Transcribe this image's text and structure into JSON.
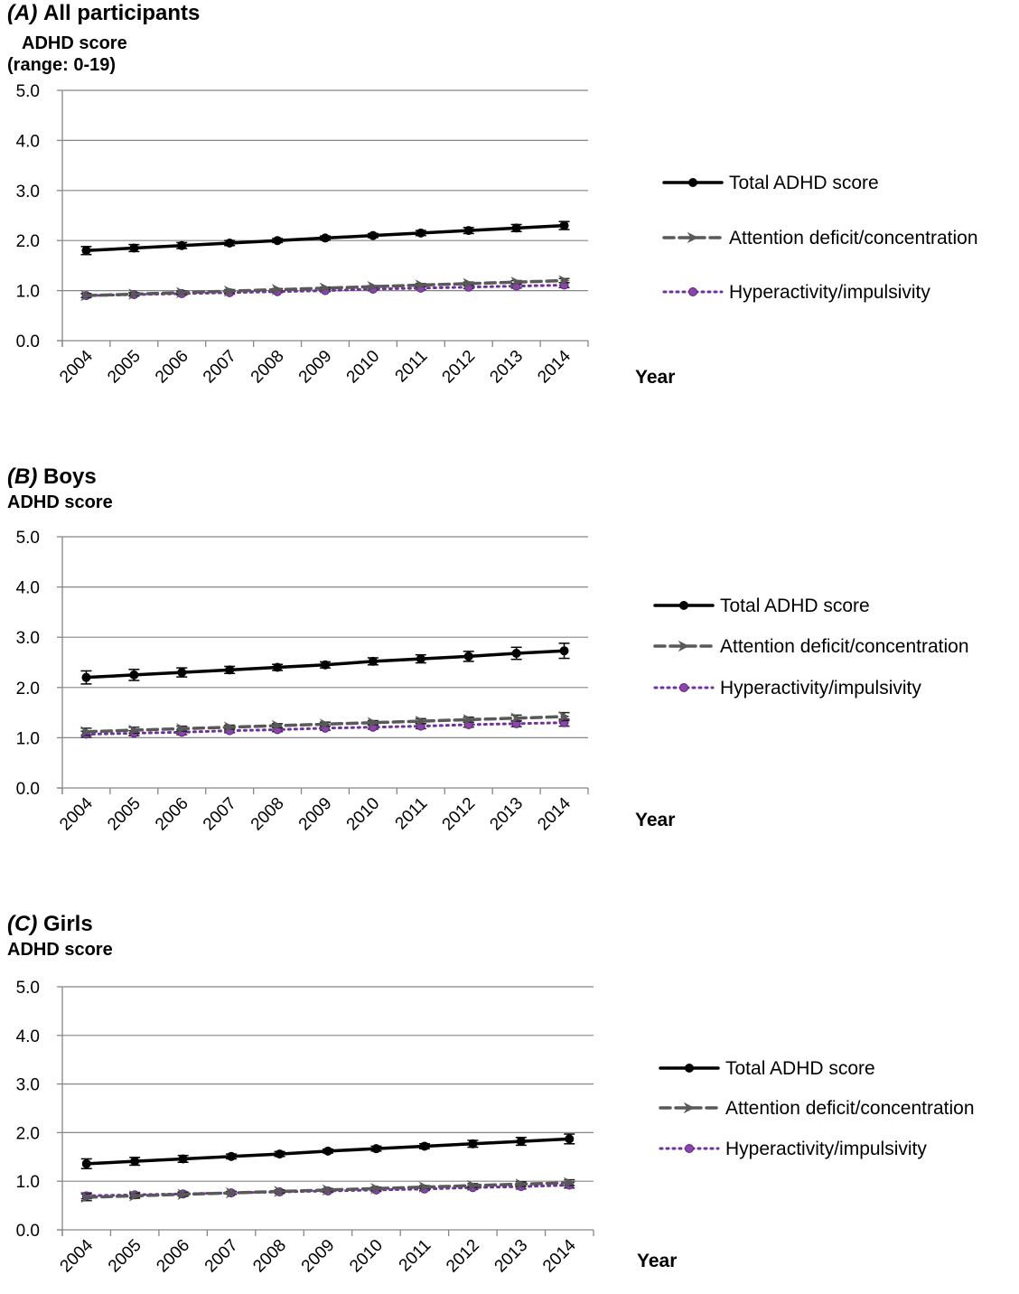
{
  "legend": {
    "total": "Total ADHD score",
    "attention": "Attention deficit/concentration",
    "hyper": "Hyperactivity/impulsivity"
  },
  "colors": {
    "total": "#000000",
    "attention": "#595959",
    "hyper": "#7030a0",
    "hyper_marker": "#8e44ad",
    "grid": "#868686"
  },
  "chart_data": [
    {
      "type": "line",
      "panel_tag": "(A)",
      "title": "All participants",
      "ylabel": [
        "ADHD score",
        "(range: 0-19)"
      ],
      "xlabel": "Year",
      "ylim": [
        0,
        5
      ],
      "yticks": [
        "0.0",
        "1.0",
        "2.0",
        "3.0",
        "4.0",
        "5.0"
      ],
      "categories": [
        "2004",
        "2005",
        "2006",
        "2007",
        "2008",
        "2009",
        "2010",
        "2011",
        "2012",
        "2013",
        "2014"
      ],
      "grid": true,
      "legend_position": "right",
      "series": [
        {
          "key": "total",
          "name": "Total ADHD score",
          "values": [
            1.8,
            1.85,
            1.9,
            1.95,
            2.0,
            2.05,
            2.1,
            2.15,
            2.2,
            2.25,
            2.3
          ],
          "errors": [
            0.08,
            0.07,
            0.06,
            0.05,
            0.04,
            0.04,
            0.04,
            0.05,
            0.06,
            0.07,
            0.08
          ]
        },
        {
          "key": "attention",
          "name": "Attention deficit/concentration",
          "values": [
            0.9,
            0.93,
            0.96,
            0.99,
            1.02,
            1.05,
            1.08,
            1.11,
            1.14,
            1.17,
            1.2
          ],
          "errors": [
            0.04,
            0.03,
            0.03,
            0.03,
            0.02,
            0.02,
            0.02,
            0.03,
            0.03,
            0.03,
            0.04
          ]
        },
        {
          "key": "hyper",
          "name": "Hyperactivity/impulsivity",
          "values": [
            0.9,
            0.92,
            0.94,
            0.96,
            0.98,
            1.0,
            1.03,
            1.05,
            1.07,
            1.09,
            1.11
          ],
          "errors": [
            0.04,
            0.03,
            0.03,
            0.03,
            0.02,
            0.02,
            0.02,
            0.03,
            0.03,
            0.04,
            0.05
          ]
        }
      ]
    },
    {
      "type": "line",
      "panel_tag": "(B)",
      "title": "Boys",
      "ylabel": [
        "ADHD score"
      ],
      "xlabel": "Year",
      "ylim": [
        0,
        5
      ],
      "yticks": [
        "0.0",
        "1.0",
        "2.0",
        "3.0",
        "4.0",
        "5.0"
      ],
      "categories": [
        "2004",
        "2005",
        "2006",
        "2007",
        "2008",
        "2009",
        "2010",
        "2011",
        "2012",
        "2013",
        "2014"
      ],
      "grid": true,
      "legend_position": "right",
      "series": [
        {
          "key": "total",
          "name": "Total ADHD score",
          "values": [
            2.2,
            2.25,
            2.3,
            2.35,
            2.4,
            2.45,
            2.52,
            2.57,
            2.62,
            2.68,
            2.73
          ],
          "errors": [
            0.13,
            0.11,
            0.09,
            0.07,
            0.06,
            0.06,
            0.07,
            0.08,
            0.1,
            0.12,
            0.15
          ]
        },
        {
          "key": "attention",
          "name": "Attention deficit/concentration",
          "values": [
            1.12,
            1.15,
            1.18,
            1.21,
            1.24,
            1.27,
            1.3,
            1.33,
            1.36,
            1.39,
            1.42
          ],
          "errors": [
            0.07,
            0.06,
            0.05,
            0.04,
            0.04,
            0.04,
            0.04,
            0.05,
            0.05,
            0.06,
            0.08
          ]
        },
        {
          "key": "hyper",
          "name": "Hyperactivity/impulsivity",
          "values": [
            1.07,
            1.09,
            1.11,
            1.14,
            1.16,
            1.19,
            1.21,
            1.23,
            1.26,
            1.28,
            1.3
          ],
          "errors": [
            0.06,
            0.05,
            0.05,
            0.04,
            0.04,
            0.04,
            0.04,
            0.05,
            0.05,
            0.06,
            0.07
          ]
        }
      ]
    },
    {
      "type": "line",
      "panel_tag": "(C)",
      "title": "Girls",
      "ylabel": [
        "ADHD score"
      ],
      "xlabel": "Year",
      "ylim": [
        0,
        5
      ],
      "yticks": [
        "0.0",
        "1.0",
        "2.0",
        "3.0",
        "4.0",
        "5.0"
      ],
      "categories": [
        "2004",
        "2005",
        "2006",
        "2007",
        "2008",
        "2009",
        "2010",
        "2011",
        "2012",
        "2013",
        "2014"
      ],
      "grid": true,
      "legend_position": "right",
      "series": [
        {
          "key": "total",
          "name": "Total ADHD score",
          "values": [
            1.36,
            1.41,
            1.46,
            1.51,
            1.56,
            1.62,
            1.67,
            1.72,
            1.77,
            1.82,
            1.87
          ],
          "errors": [
            0.1,
            0.08,
            0.07,
            0.05,
            0.05,
            0.04,
            0.05,
            0.05,
            0.07,
            0.08,
            0.1
          ]
        },
        {
          "key": "attention",
          "name": "Attention deficit/concentration",
          "values": [
            0.67,
            0.7,
            0.73,
            0.76,
            0.79,
            0.82,
            0.85,
            0.88,
            0.91,
            0.94,
            0.97
          ],
          "errors": [
            0.07,
            0.05,
            0.04,
            0.03,
            0.03,
            0.03,
            0.03,
            0.03,
            0.04,
            0.05,
            0.06
          ]
        },
        {
          "key": "hyper",
          "name": "Hyperactivity/impulsivity",
          "values": [
            0.7,
            0.72,
            0.74,
            0.76,
            0.78,
            0.8,
            0.82,
            0.84,
            0.87,
            0.89,
            0.92
          ],
          "errors": [
            0.06,
            0.05,
            0.04,
            0.03,
            0.03,
            0.03,
            0.03,
            0.03,
            0.04,
            0.05,
            0.06
          ]
        }
      ]
    }
  ]
}
